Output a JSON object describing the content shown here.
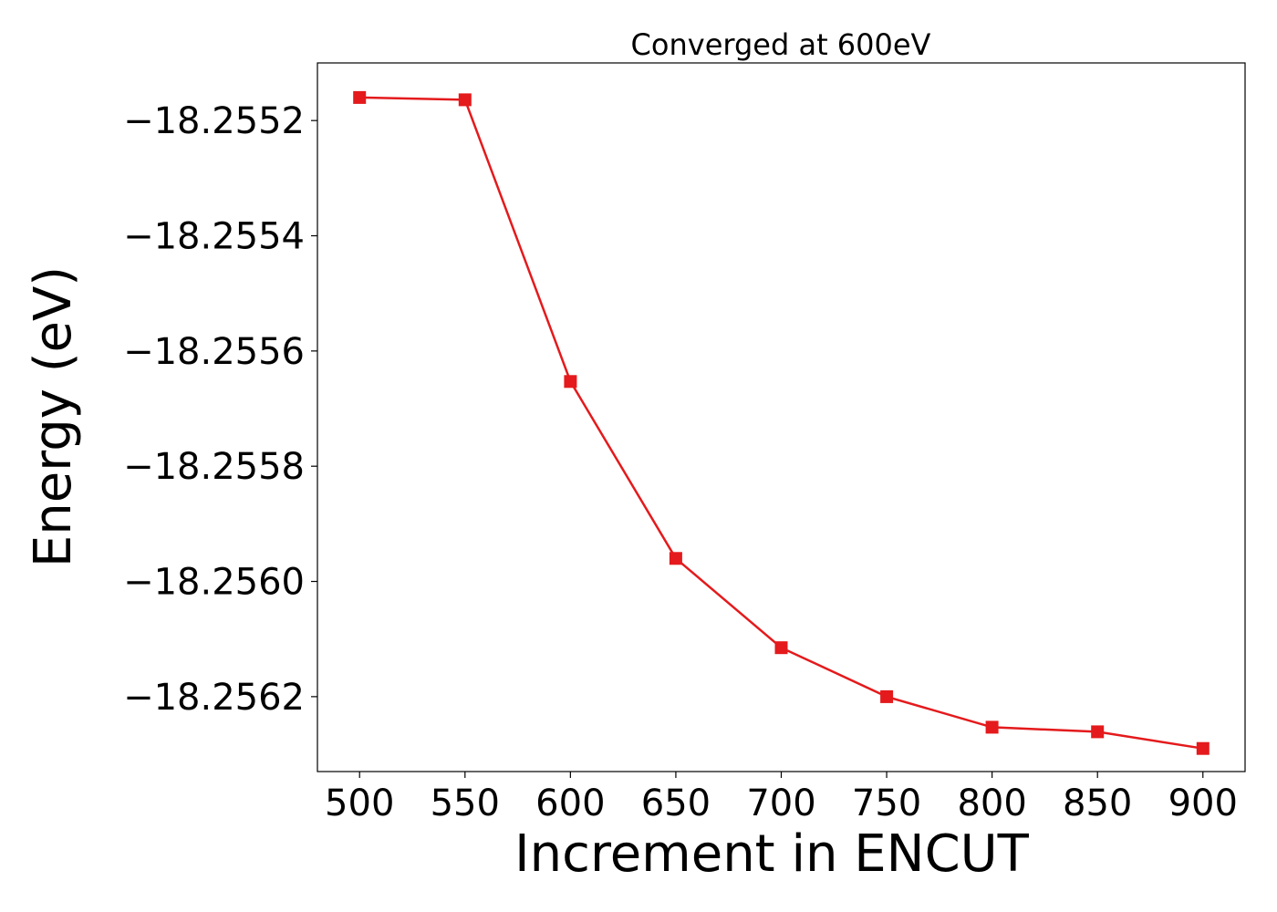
{
  "chart_data": {
    "type": "line",
    "title": "Converged at 600eV",
    "xlabel": "Increment in ENCUT",
    "ylabel": "Energy (eV)",
    "x": [
      500,
      550,
      600,
      650,
      700,
      750,
      800,
      850,
      900
    ],
    "xticks": [
      500,
      550,
      600,
      650,
      700,
      750,
      800,
      850,
      900
    ],
    "xtick_labels": [
      "500",
      "550",
      "600",
      "650",
      "700",
      "750",
      "800",
      "850",
      "900"
    ],
    "yticks": [
      -18.2552,
      -18.2554,
      -18.2556,
      -18.2558,
      -18.256,
      -18.2562
    ],
    "ytick_labels": [
      "−18.2552",
      "−18.2554",
      "−18.2556",
      "−18.2558",
      "−18.2560",
      "−18.2562"
    ],
    "xlim": [
      480,
      920
    ],
    "ylim": [
      -18.25633,
      -18.2551
    ],
    "grid": false,
    "series": [
      {
        "marker": "square",
        "color": "#e41a1c",
        "values": [
          -18.25516,
          -18.255164,
          -18.255653,
          -18.25596,
          -18.256115,
          -18.2562,
          -18.256253,
          -18.256261,
          -18.25629
        ]
      }
    ]
  }
}
